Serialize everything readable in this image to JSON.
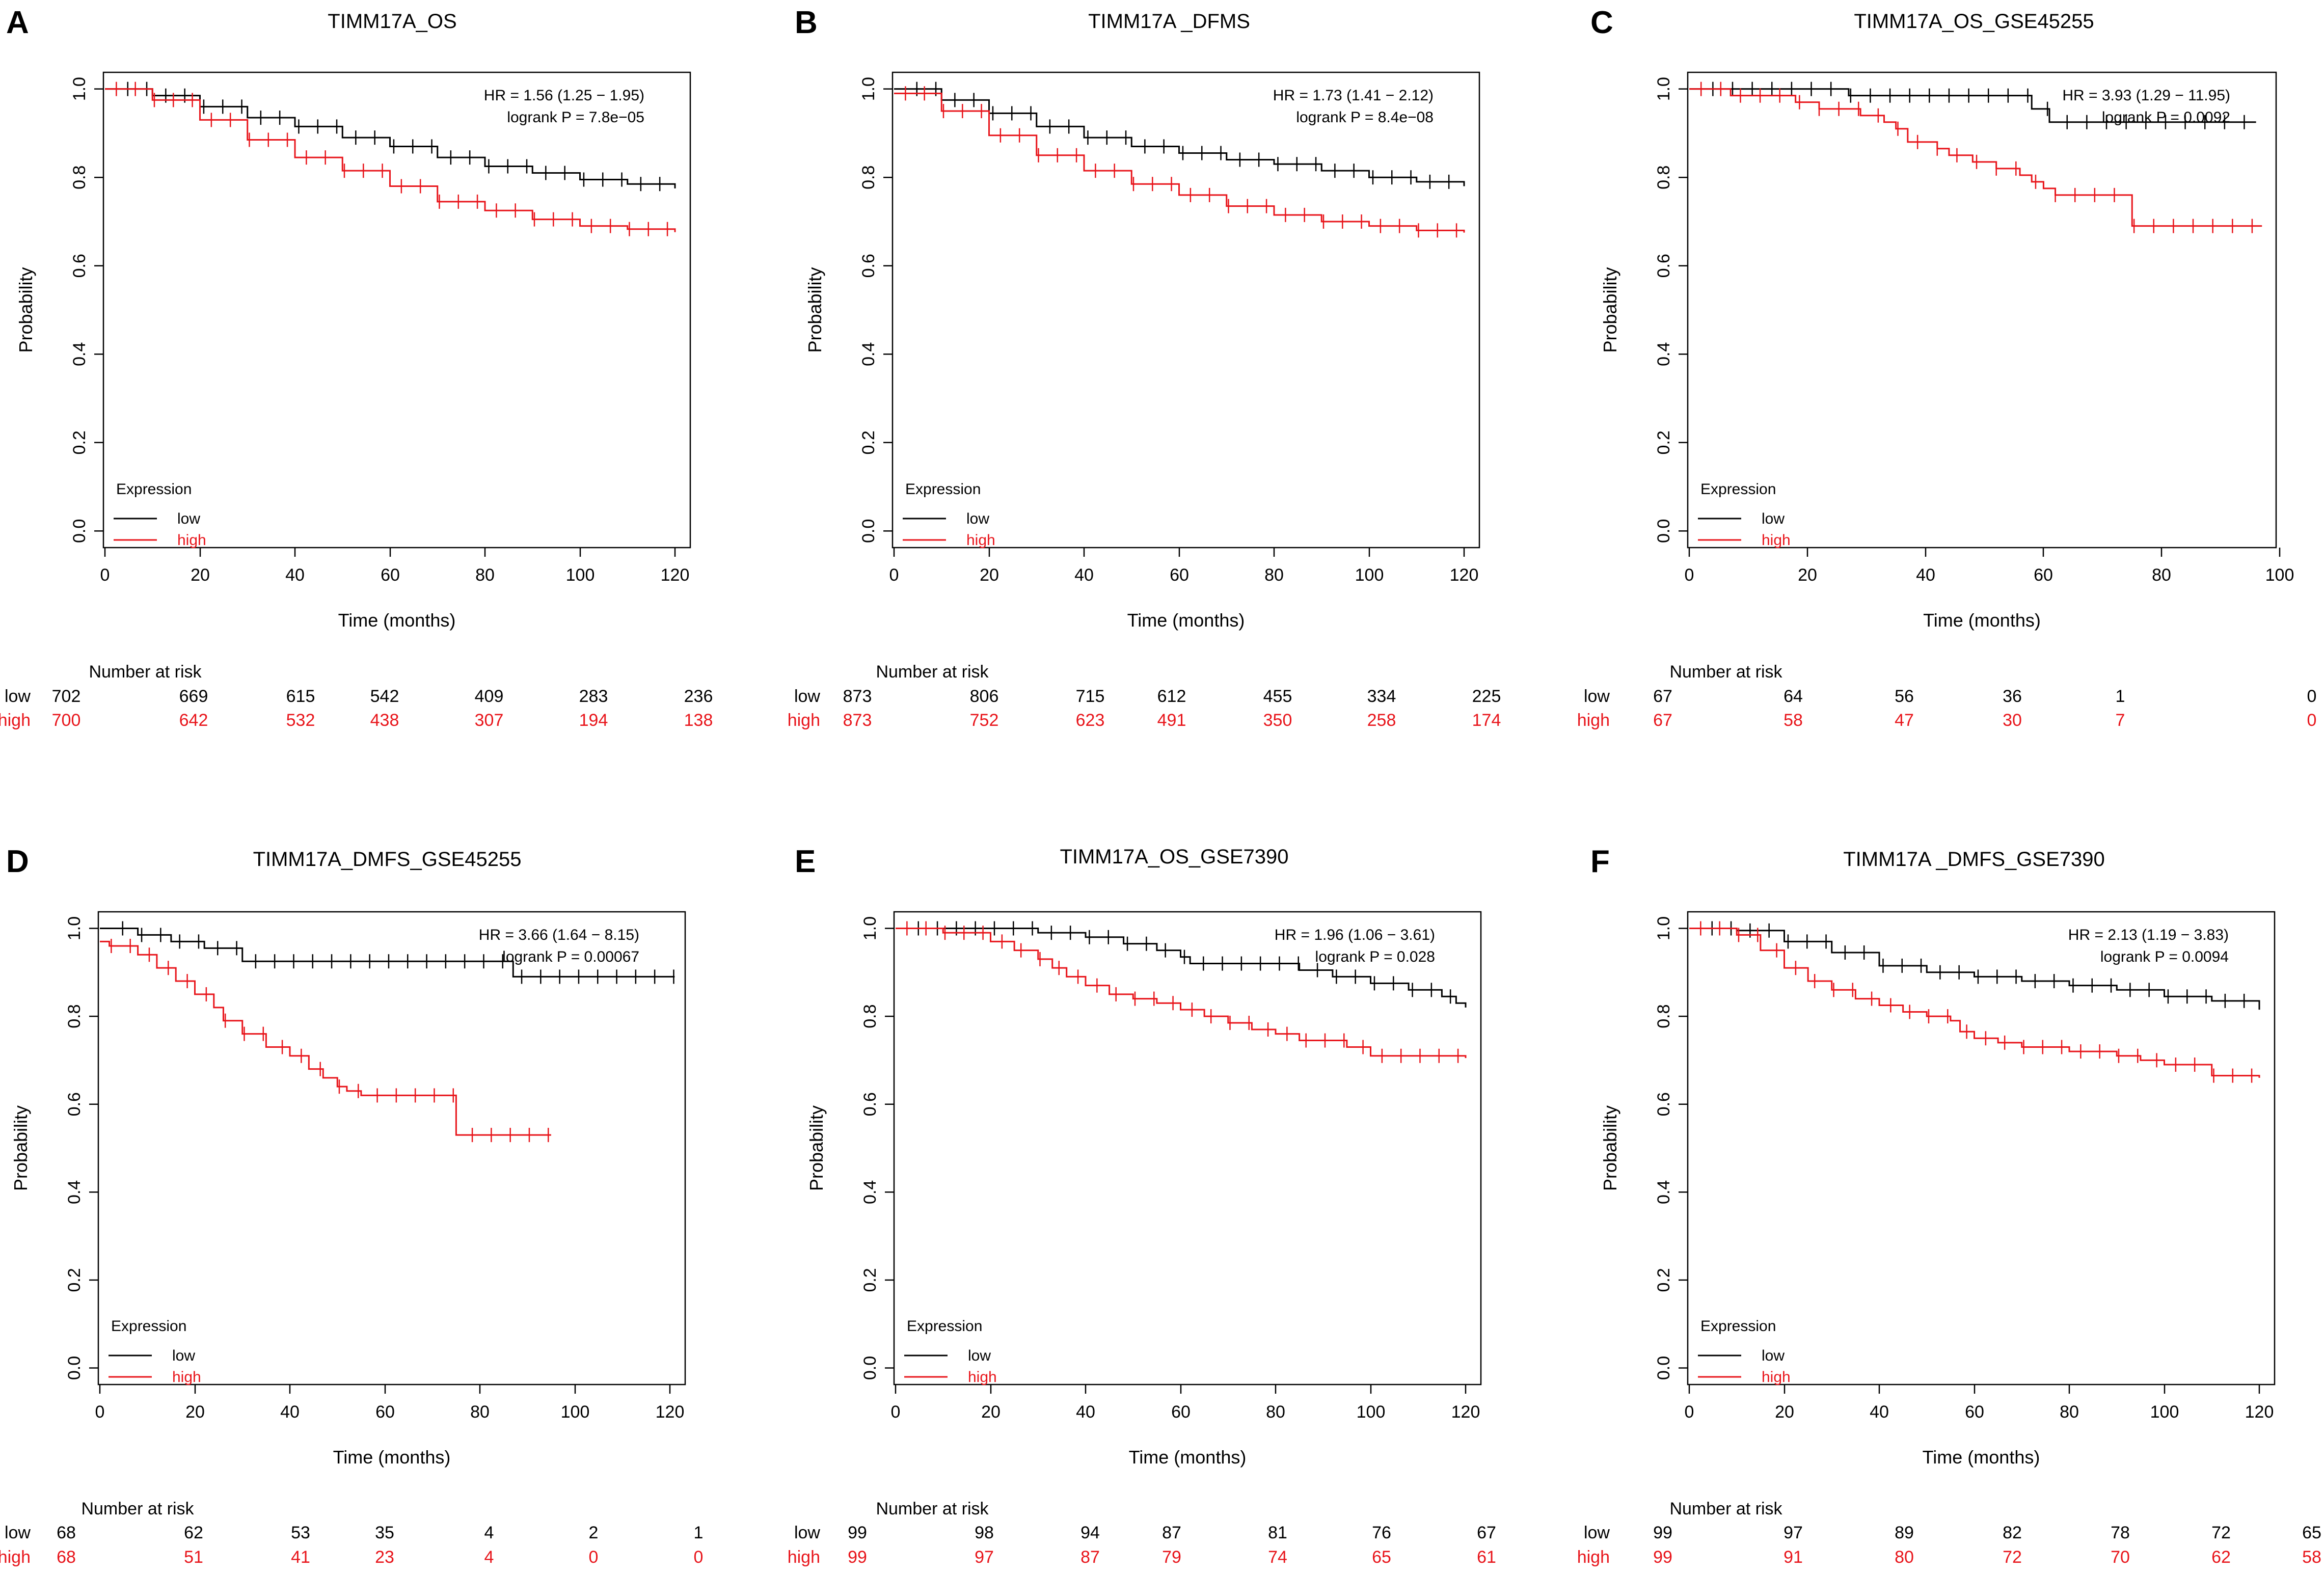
{
  "colors": {
    "low": "#000000",
    "high": "#e8151b"
  },
  "chart_data": [
    {
      "type": "line",
      "panel": "A",
      "title": "TIMM17A_OS",
      "xlabel": "Time (months)",
      "ylabel": "Probability",
      "xlim": [
        0,
        120
      ],
      "ylim": [
        0,
        1
      ],
      "xticks": [
        "0",
        "20",
        "40",
        "60",
        "80",
        "100",
        "120"
      ],
      "yticks": [
        "0.0",
        "0.2",
        "0.4",
        "0.6",
        "0.8",
        "1.0"
      ],
      "legend": {
        "title": "Expression",
        "low": "low",
        "high": "high",
        "position": "bottom-left"
      },
      "annotation": {
        "hr": "HR = 1.56 (1.25 − 1.95)",
        "logrank": "logrank P = 7.8e−05"
      },
      "series": [
        {
          "name": "low",
          "x": [
            0,
            10,
            20,
            30,
            40,
            50,
            60,
            70,
            80,
            90,
            100,
            110,
            120
          ],
          "y": [
            1,
            0.985,
            0.96,
            0.935,
            0.915,
            0.89,
            0.87,
            0.845,
            0.825,
            0.81,
            0.795,
            0.785,
            0.775
          ]
        },
        {
          "name": "high",
          "x": [
            0,
            10,
            20,
            30,
            40,
            50,
            60,
            70,
            80,
            90,
            100,
            110,
            120
          ],
          "y": [
            1,
            0.975,
            0.93,
            0.885,
            0.845,
            0.815,
            0.78,
            0.745,
            0.725,
            0.705,
            0.69,
            0.683,
            0.676
          ]
        }
      ],
      "risk_table": {
        "header": "Number at risk",
        "low_label": "low",
        "high_label": "high",
        "low": [
          "702",
          "669",
          "615",
          "542",
          "409",
          "283",
          "236"
        ],
        "high": [
          "700",
          "642",
          "532",
          "438",
          "307",
          "194",
          "138"
        ]
      }
    },
    {
      "type": "line",
      "panel": "B",
      "title": "TIMM17A _DFMS",
      "xlabel": "Time (months)",
      "ylabel": "Probability",
      "xlim": [
        0,
        120
      ],
      "ylim": [
        0,
        1
      ],
      "xticks": [
        "0",
        "20",
        "40",
        "60",
        "80",
        "100",
        "120"
      ],
      "yticks": [
        "0.0",
        "0.2",
        "0.4",
        "0.6",
        "0.8",
        "1.0"
      ],
      "legend": {
        "title": "Expression",
        "low": "low",
        "high": "high",
        "position": "bottom-left"
      },
      "annotation": {
        "hr": "HR = 1.73 (1.41 − 2.12)",
        "logrank": "logrank P = 8.4e−08"
      },
      "series": [
        {
          "name": "low",
          "x": [
            0,
            10,
            20,
            30,
            40,
            50,
            60,
            70,
            80,
            90,
            100,
            110,
            120
          ],
          "y": [
            1,
            0.975,
            0.945,
            0.915,
            0.89,
            0.87,
            0.855,
            0.84,
            0.83,
            0.815,
            0.8,
            0.79,
            0.78
          ]
        },
        {
          "name": "high",
          "x": [
            0,
            10,
            20,
            30,
            40,
            50,
            60,
            70,
            80,
            90,
            100,
            110,
            120
          ],
          "y": [
            0.99,
            0.95,
            0.895,
            0.85,
            0.815,
            0.785,
            0.76,
            0.735,
            0.715,
            0.7,
            0.69,
            0.68,
            0.675
          ]
        }
      ],
      "risk_table": {
        "header": "Number at risk",
        "low_label": "low",
        "high_label": "high",
        "low": [
          "873",
          "806",
          "715",
          "612",
          "455",
          "334",
          "225"
        ],
        "high": [
          "873",
          "752",
          "623",
          "491",
          "350",
          "258",
          "174"
        ]
      }
    },
    {
      "type": "line",
      "panel": "C",
      "title": "TIMM17A_OS_GSE45255",
      "xlabel": "Time (months)",
      "ylabel": "Probability",
      "xlim": [
        0,
        100
      ],
      "ylim": [
        0,
        1
      ],
      "xticks": [
        "0",
        "20",
        "40",
        "60",
        "80",
        "100"
      ],
      "yticks": [
        "0.0",
        "0.2",
        "0.4",
        "0.6",
        "0.8",
        "1.0"
      ],
      "legend": {
        "title": "Expression",
        "low": "low",
        "high": "high",
        "position": "bottom-left"
      },
      "annotation": {
        "hr": "HR = 3.93 (1.29 − 11.95)",
        "logrank": "logrank P = 0.0092"
      },
      "series": [
        {
          "name": "low",
          "x": [
            0,
            26,
            27,
            55,
            58,
            61,
            96
          ],
          "y": [
            1,
            1,
            0.985,
            0.985,
            0.955,
            0.925,
            0.925
          ]
        },
        {
          "name": "high",
          "x": [
            0,
            7,
            18,
            22,
            29,
            33,
            35,
            37,
            42,
            44,
            48,
            52,
            56,
            58,
            60,
            62,
            74,
            75,
            97
          ],
          "y": [
            1,
            0.985,
            0.97,
            0.955,
            0.94,
            0.925,
            0.91,
            0.88,
            0.865,
            0.85,
            0.835,
            0.82,
            0.805,
            0.79,
            0.775,
            0.76,
            0.76,
            0.69,
            0.69
          ]
        }
      ],
      "risk_table": {
        "header": "Number at risk",
        "low_label": "low",
        "high_label": "high",
        "low": [
          "67",
          "64",
          "56",
          "36",
          "1",
          "0"
        ],
        "high": [
          "67",
          "58",
          "47",
          "30",
          "7",
          "0"
        ]
      }
    },
    {
      "type": "line",
      "panel": "D",
      "title": "TIMM17A_DMFS_GSE45255",
      "xlabel": "Time (months)",
      "ylabel": "Probability",
      "xlim": [
        0,
        120
      ],
      "ylim": [
        0,
        1
      ],
      "xticks": [
        "0",
        "20",
        "40",
        "60",
        "80",
        "100",
        "120"
      ],
      "yticks": [
        "0.0",
        "0.2",
        "0.4",
        "0.6",
        "0.8",
        "1.0"
      ],
      "legend": {
        "title": "Expression",
        "low": "low",
        "high": "high",
        "position": "bottom-left"
      },
      "annotation": {
        "hr": "HR = 3.66 (1.64 − 8.15)",
        "logrank": "logrank P = 0.00067"
      },
      "series": [
        {
          "name": "low",
          "x": [
            0,
            8,
            15,
            22,
            30,
            86,
            87,
            121
          ],
          "y": [
            1,
            0.985,
            0.97,
            0.955,
            0.925,
            0.925,
            0.89,
            0.89
          ]
        },
        {
          "name": "high",
          "x": [
            0,
            2,
            8,
            12,
            16,
            20,
            24,
            26,
            30,
            35,
            40,
            44,
            47,
            50,
            52,
            55,
            74,
            75,
            95
          ],
          "y": [
            0.97,
            0.96,
            0.94,
            0.91,
            0.88,
            0.85,
            0.82,
            0.79,
            0.76,
            0.73,
            0.71,
            0.68,
            0.66,
            0.64,
            0.63,
            0.62,
            0.62,
            0.53,
            0.53
          ]
        }
      ],
      "risk_table": {
        "header": "Number at risk",
        "low_label": "low",
        "high_label": "high",
        "low": [
          "68",
          "62",
          "53",
          "35",
          "4",
          "2",
          "1"
        ],
        "high": [
          "68",
          "51",
          "41",
          "23",
          "4",
          "0",
          "0"
        ]
      }
    },
    {
      "type": "line",
      "panel": "E",
      "title": "TIMM17A_OS_GSE7390",
      "xlabel": "Time (months)",
      "ylabel": "Probability",
      "xlim": [
        0,
        120
      ],
      "ylim": [
        0,
        1
      ],
      "xticks": [
        "0",
        "20",
        "40",
        "60",
        "80",
        "100",
        "120"
      ],
      "yticks": [
        "0.0",
        "0.2",
        "0.4",
        "0.6",
        "0.8",
        "1.0"
      ],
      "legend": {
        "title": "Expression",
        "low": "low",
        "high": "high",
        "position": "bottom-left"
      },
      "annotation": {
        "hr": "HR = 1.96 (1.06 − 3.61)",
        "logrank": "logrank P = 0.028"
      },
      "series": [
        {
          "name": "low",
          "x": [
            0,
            20,
            30,
            40,
            48,
            55,
            60,
            62,
            85,
            92,
            100,
            108,
            115,
            118,
            120
          ],
          "y": [
            1,
            1,
            0.99,
            0.98,
            0.965,
            0.95,
            0.935,
            0.92,
            0.905,
            0.89,
            0.875,
            0.86,
            0.845,
            0.83,
            0.82
          ]
        },
        {
          "name": "high",
          "x": [
            0,
            10,
            20,
            25,
            30,
            33,
            36,
            40,
            45,
            50,
            55,
            60,
            65,
            70,
            75,
            80,
            85,
            95,
            100,
            120
          ],
          "y": [
            1,
            0.99,
            0.97,
            0.95,
            0.93,
            0.91,
            0.89,
            0.87,
            0.85,
            0.84,
            0.83,
            0.815,
            0.8,
            0.785,
            0.77,
            0.76,
            0.745,
            0.73,
            0.71,
            0.705
          ]
        }
      ],
      "risk_table": {
        "header": "Number at risk",
        "low_label": "low",
        "high_label": "high",
        "low": [
          "99",
          "98",
          "94",
          "87",
          "81",
          "76",
          "67"
        ],
        "high": [
          "99",
          "97",
          "87",
          "79",
          "74",
          "65",
          "61"
        ]
      }
    },
    {
      "type": "line",
      "panel": "F",
      "title": "TIMM17A _DMFS_GSE7390",
      "xlabel": "Time (months)",
      "ylabel": "Probability",
      "xlim": [
        0,
        120
      ],
      "ylim": [
        0,
        1
      ],
      "xticks": [
        "0",
        "20",
        "40",
        "60",
        "80",
        "100",
        "120"
      ],
      "yticks": [
        "0.0",
        "0.2",
        "0.4",
        "0.6",
        "0.8",
        "1.0"
      ],
      "legend": {
        "title": "Expression",
        "low": "low",
        "high": "high",
        "position": "bottom-left"
      },
      "annotation": {
        "hr": "HR = 2.13 (1.19 − 3.83)",
        "logrank": "logrank P = 0.0094"
      },
      "series": [
        {
          "name": "low",
          "x": [
            0,
            10,
            20,
            30,
            40,
            50,
            60,
            70,
            80,
            90,
            100,
            110,
            120
          ],
          "y": [
            1,
            0.995,
            0.97,
            0.945,
            0.915,
            0.9,
            0.89,
            0.88,
            0.87,
            0.86,
            0.845,
            0.835,
            0.815
          ]
        },
        {
          "name": "high",
          "x": [
            0,
            10,
            15,
            20,
            25,
            30,
            35,
            40,
            45,
            50,
            55,
            57,
            60,
            65,
            70,
            80,
            90,
            95,
            100,
            110,
            120
          ],
          "y": [
            1,
            0.985,
            0.95,
            0.91,
            0.88,
            0.86,
            0.84,
            0.825,
            0.81,
            0.8,
            0.79,
            0.765,
            0.75,
            0.74,
            0.73,
            0.72,
            0.71,
            0.7,
            0.69,
            0.665,
            0.66
          ]
        }
      ],
      "risk_table": {
        "header": "Number at risk",
        "low_label": "low",
        "high_label": "high",
        "low": [
          "99",
          "97",
          "89",
          "82",
          "78",
          "72",
          "65"
        ],
        "high": [
          "99",
          "91",
          "80",
          "72",
          "70",
          "62",
          "58"
        ]
      }
    }
  ]
}
